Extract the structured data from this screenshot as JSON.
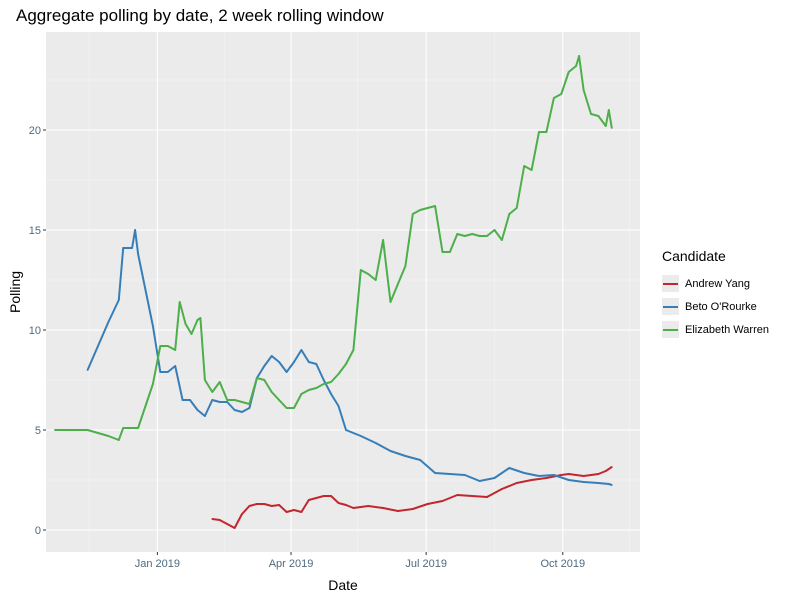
{
  "chart_data": {
    "type": "line",
    "title": "Aggregate polling by date, 2 week rolling window",
    "xlabel": "Date",
    "ylabel": "Polling",
    "x_ticks": [
      "Jan 2019",
      "Apr 2019",
      "Jul 2019",
      "Oct 2019"
    ],
    "y_ticks": [
      "0",
      "5",
      "10",
      "15",
      "20"
    ],
    "xlim": [
      "2018-10-18",
      "2019-11-22"
    ],
    "ylim": [
      -1.1,
      24.9
    ],
    "grid": true,
    "legend_title": "Candidate",
    "legend_position": "right",
    "series": [
      {
        "name": "Andrew Yang",
        "color": "#c1272d",
        "points": [
          [
            "2019-02-07",
            0.55
          ],
          [
            "2019-02-12",
            0.5
          ],
          [
            "2019-02-17",
            0.3
          ],
          [
            "2019-02-22",
            0.1
          ],
          [
            "2019-02-27",
            0.8
          ],
          [
            "2019-03-04",
            1.2
          ],
          [
            "2019-03-09",
            1.3
          ],
          [
            "2019-03-14",
            1.3
          ],
          [
            "2019-03-19",
            1.2
          ],
          [
            "2019-03-24",
            1.25
          ],
          [
            "2019-03-29",
            0.9
          ],
          [
            "2019-04-03",
            1.0
          ],
          [
            "2019-04-08",
            0.9
          ],
          [
            "2019-04-13",
            1.5
          ],
          [
            "2019-04-18",
            1.6
          ],
          [
            "2019-04-23",
            1.7
          ],
          [
            "2019-04-28",
            1.7
          ],
          [
            "2019-05-03",
            1.35
          ],
          [
            "2019-05-08",
            1.25
          ],
          [
            "2019-05-13",
            1.1
          ],
          [
            "2019-05-18",
            1.15
          ],
          [
            "2019-05-23",
            1.2
          ],
          [
            "2019-06-02",
            1.1
          ],
          [
            "2019-06-12",
            0.95
          ],
          [
            "2019-06-22",
            1.05
          ],
          [
            "2019-07-02",
            1.3
          ],
          [
            "2019-07-12",
            1.45
          ],
          [
            "2019-07-22",
            1.75
          ],
          [
            "2019-08-01",
            1.7
          ],
          [
            "2019-08-11",
            1.65
          ],
          [
            "2019-08-21",
            2.05
          ],
          [
            "2019-08-31",
            2.35
          ],
          [
            "2019-09-10",
            2.5
          ],
          [
            "2019-09-20",
            2.6
          ],
          [
            "2019-09-30",
            2.75
          ],
          [
            "2019-10-05",
            2.8
          ],
          [
            "2019-10-10",
            2.75
          ],
          [
            "2019-10-15",
            2.7
          ],
          [
            "2019-10-20",
            2.75
          ],
          [
            "2019-10-25",
            2.8
          ],
          [
            "2019-10-30",
            2.95
          ],
          [
            "2019-11-03",
            3.15
          ]
        ]
      },
      {
        "name": "Beto O'Rourke",
        "color": "#377eb8",
        "points": [
          [
            "2018-11-15",
            8.0
          ],
          [
            "2018-11-22",
            9.2
          ],
          [
            "2018-11-29",
            10.4
          ],
          [
            "2018-12-06",
            11.5
          ],
          [
            "2018-12-09",
            14.1
          ],
          [
            "2018-12-15",
            14.1
          ],
          [
            "2018-12-17",
            15.0
          ],
          [
            "2018-12-19",
            13.8
          ],
          [
            "2018-12-24",
            12.0
          ],
          [
            "2018-12-29",
            10.2
          ],
          [
            "2019-01-03",
            7.9
          ],
          [
            "2019-01-08",
            7.9
          ],
          [
            "2019-01-13",
            8.2
          ],
          [
            "2019-01-18",
            6.5
          ],
          [
            "2019-01-23",
            6.5
          ],
          [
            "2019-01-28",
            6.0
          ],
          [
            "2019-02-02",
            5.7
          ],
          [
            "2019-02-07",
            6.5
          ],
          [
            "2019-02-12",
            6.4
          ],
          [
            "2019-02-17",
            6.4
          ],
          [
            "2019-02-22",
            6.0
          ],
          [
            "2019-02-27",
            5.9
          ],
          [
            "2019-03-04",
            6.1
          ],
          [
            "2019-03-09",
            7.6
          ],
          [
            "2019-03-14",
            8.2
          ],
          [
            "2019-03-19",
            8.7
          ],
          [
            "2019-03-24",
            8.4
          ],
          [
            "2019-03-29",
            7.9
          ],
          [
            "2019-04-03",
            8.4
          ],
          [
            "2019-04-08",
            9.0
          ],
          [
            "2019-04-13",
            8.4
          ],
          [
            "2019-04-18",
            8.3
          ],
          [
            "2019-04-23",
            7.5
          ],
          [
            "2019-04-28",
            6.8
          ],
          [
            "2019-05-03",
            6.2
          ],
          [
            "2019-05-08",
            5.0
          ],
          [
            "2019-05-18",
            4.7
          ],
          [
            "2019-05-28",
            4.35
          ],
          [
            "2019-06-07",
            3.95
          ],
          [
            "2019-06-17",
            3.7
          ],
          [
            "2019-06-27",
            3.5
          ],
          [
            "2019-07-07",
            2.85
          ],
          [
            "2019-07-17",
            2.8
          ],
          [
            "2019-07-27",
            2.75
          ],
          [
            "2019-08-06",
            2.45
          ],
          [
            "2019-08-16",
            2.6
          ],
          [
            "2019-08-26",
            3.1
          ],
          [
            "2019-09-05",
            2.85
          ],
          [
            "2019-09-15",
            2.7
          ],
          [
            "2019-09-25",
            2.75
          ],
          [
            "2019-10-05",
            2.5
          ],
          [
            "2019-10-15",
            2.4
          ],
          [
            "2019-10-25",
            2.35
          ],
          [
            "2019-11-01",
            2.3
          ],
          [
            "2019-11-03",
            2.25
          ]
        ]
      },
      {
        "name": "Elizabeth Warren",
        "color": "#4daf4a",
        "points": [
          [
            "2018-10-24",
            5.0
          ],
          [
            "2018-11-08",
            5.0
          ],
          [
            "2018-11-15",
            5.0
          ],
          [
            "2018-11-22",
            4.85
          ],
          [
            "2018-11-29",
            4.7
          ],
          [
            "2018-12-06",
            4.5
          ],
          [
            "2018-12-09",
            5.1
          ],
          [
            "2018-12-19",
            5.1
          ],
          [
            "2018-12-29",
            7.3
          ],
          [
            "2019-01-03",
            9.2
          ],
          [
            "2019-01-08",
            9.2
          ],
          [
            "2019-01-13",
            9.0
          ],
          [
            "2019-01-16",
            11.4
          ],
          [
            "2019-01-20",
            10.3
          ],
          [
            "2019-01-24",
            9.8
          ],
          [
            "2019-01-28",
            10.5
          ],
          [
            "2019-01-30",
            10.6
          ],
          [
            "2019-02-02",
            7.5
          ],
          [
            "2019-02-07",
            6.9
          ],
          [
            "2019-02-12",
            7.4
          ],
          [
            "2019-02-17",
            6.5
          ],
          [
            "2019-02-22",
            6.5
          ],
          [
            "2019-02-27",
            6.4
          ],
          [
            "2019-03-04",
            6.3
          ],
          [
            "2019-03-09",
            7.6
          ],
          [
            "2019-03-14",
            7.5
          ],
          [
            "2019-03-19",
            6.9
          ],
          [
            "2019-03-24",
            6.5
          ],
          [
            "2019-03-29",
            6.1
          ],
          [
            "2019-04-03",
            6.1
          ],
          [
            "2019-04-08",
            6.8
          ],
          [
            "2019-04-13",
            7.0
          ],
          [
            "2019-04-18",
            7.1
          ],
          [
            "2019-04-23",
            7.3
          ],
          [
            "2019-04-28",
            7.4
          ],
          [
            "2019-05-03",
            7.8
          ],
          [
            "2019-05-08",
            8.3
          ],
          [
            "2019-05-13",
            9.0
          ],
          [
            "2019-05-18",
            13.0
          ],
          [
            "2019-05-23",
            12.8
          ],
          [
            "2019-05-28",
            12.5
          ],
          [
            "2019-06-02",
            14.5
          ],
          [
            "2019-06-07",
            11.4
          ],
          [
            "2019-06-12",
            12.3
          ],
          [
            "2019-06-17",
            13.2
          ],
          [
            "2019-06-22",
            15.8
          ],
          [
            "2019-06-27",
            16.0
          ],
          [
            "2019-07-02",
            16.1
          ],
          [
            "2019-07-07",
            16.2
          ],
          [
            "2019-07-12",
            13.9
          ],
          [
            "2019-07-17",
            13.9
          ],
          [
            "2019-07-22",
            14.8
          ],
          [
            "2019-07-27",
            14.7
          ],
          [
            "2019-08-01",
            14.8
          ],
          [
            "2019-08-06",
            14.7
          ],
          [
            "2019-08-11",
            14.7
          ],
          [
            "2019-08-16",
            15.0
          ],
          [
            "2019-08-21",
            14.5
          ],
          [
            "2019-08-26",
            15.8
          ],
          [
            "2019-08-31",
            16.1
          ],
          [
            "2019-09-05",
            18.2
          ],
          [
            "2019-09-10",
            18.0
          ],
          [
            "2019-09-15",
            19.9
          ],
          [
            "2019-09-20",
            19.9
          ],
          [
            "2019-09-25",
            21.6
          ],
          [
            "2019-09-30",
            21.8
          ],
          [
            "2019-10-05",
            22.9
          ],
          [
            "2019-10-10",
            23.2
          ],
          [
            "2019-10-12",
            23.7
          ],
          [
            "2019-10-15",
            22.0
          ],
          [
            "2019-10-20",
            20.8
          ],
          [
            "2019-10-25",
            20.7
          ],
          [
            "2019-10-30",
            20.2
          ],
          [
            "2019-11-01",
            21.0
          ],
          [
            "2019-11-03",
            20.1
          ]
        ]
      }
    ]
  }
}
